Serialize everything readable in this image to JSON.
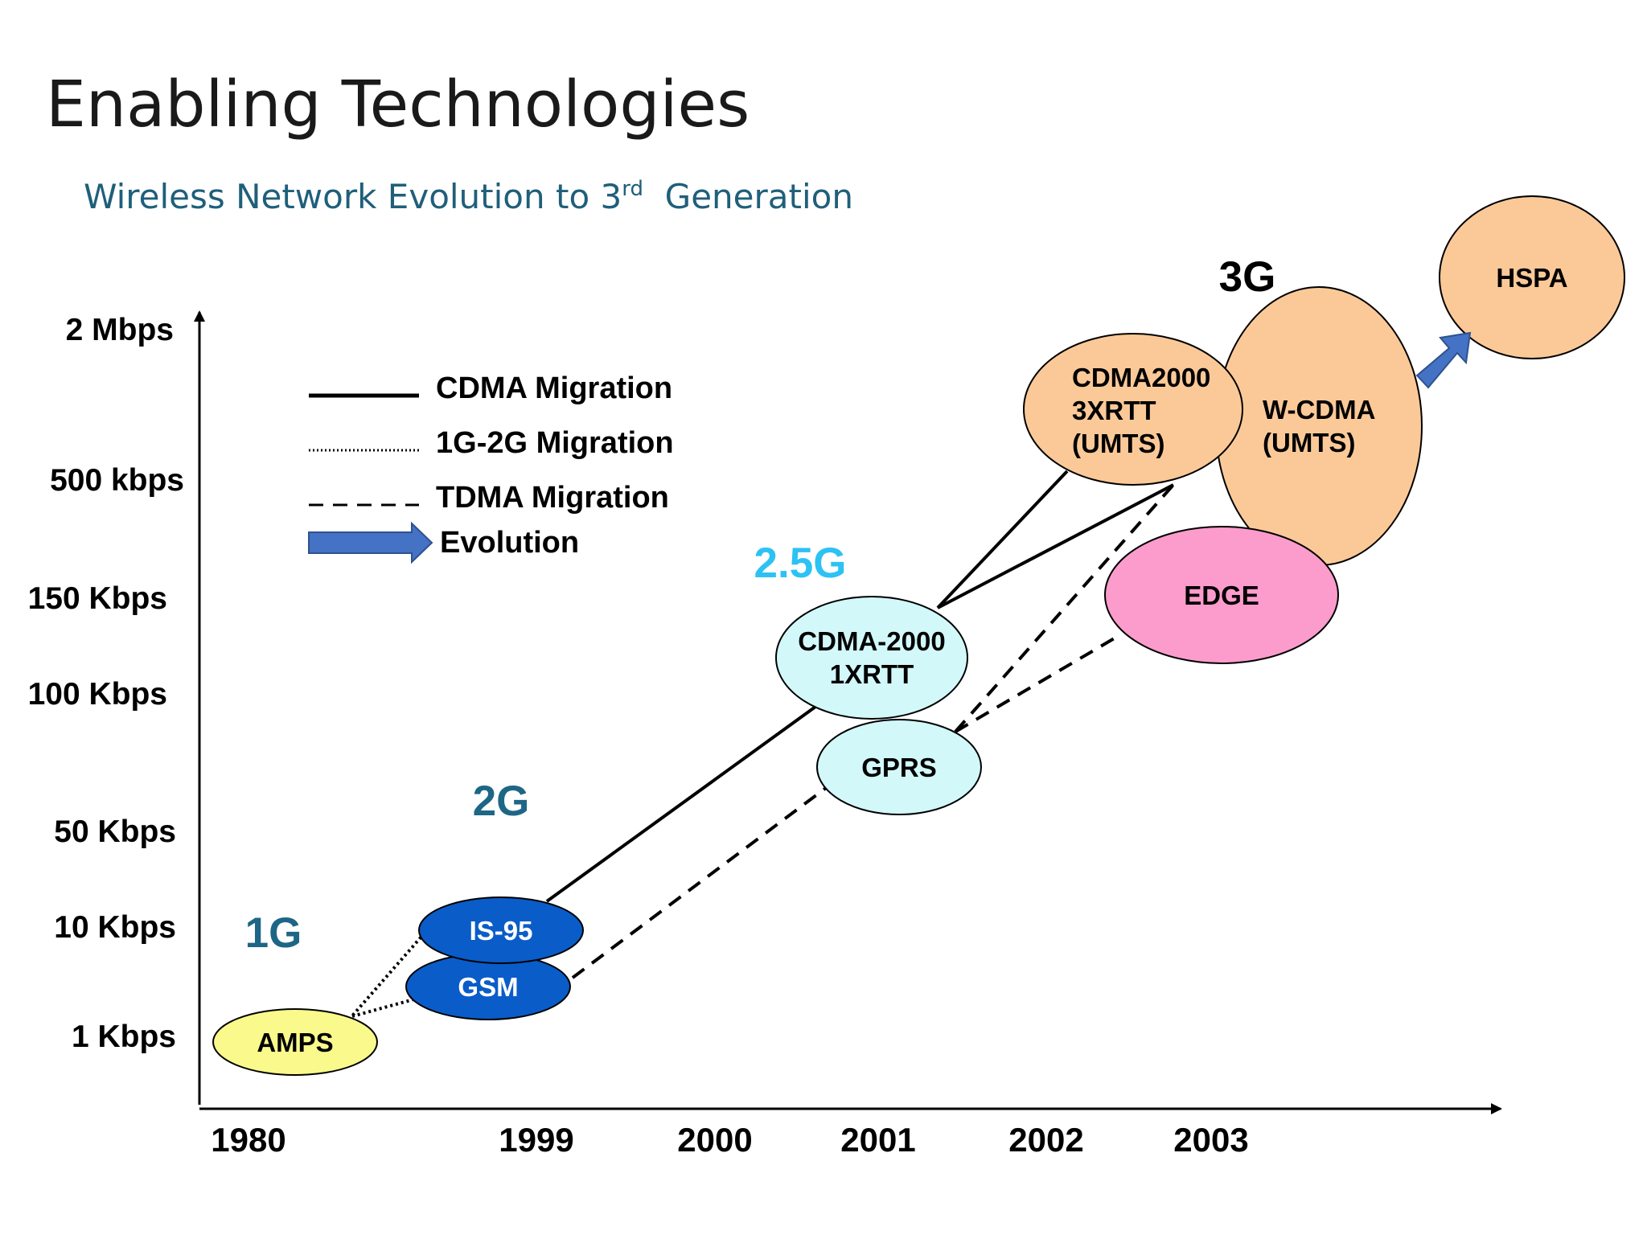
{
  "title": "Enabling Technologies",
  "subtitle": {
    "text": "Wireless Network Evolution to 3",
    "sup": "rd",
    "suffix": "  Generation"
  },
  "y_axis": [
    "2 Mbps",
    "500 kbps",
    "150 Kbps",
    "100 Kbps",
    "50 Kbps",
    "10 Kbps",
    "1 Kbps"
  ],
  "x_axis": [
    "1980",
    "1999",
    "2000",
    "2001",
    "2002",
    "2003"
  ],
  "legend": {
    "cdma": "CDMA Migration",
    "g12": "1G-2G Migration",
    "tdma": "TDMA Migration",
    "evolution": "Evolution"
  },
  "generations": {
    "g1": "1G",
    "g2": "2G",
    "g25": "2.5G",
    "g3": "3G"
  },
  "nodes": {
    "amps": "AMPS",
    "is95": "IS-95",
    "gsm": "GSM",
    "cdma1x": [
      "CDMA-2000",
      "1XRTT"
    ],
    "gprs": "GPRS",
    "edge": "EDGE",
    "cdma3x": [
      "CDMA2000",
      "3XRTT",
      "(UMTS)"
    ],
    "wcdma": [
      "W-CDMA",
      "(UMTS)"
    ],
    "hspa": "HSPA"
  },
  "colors": {
    "amps": "#fafa8c",
    "gsm_is95": "#0a5cc8",
    "cdma1x_gprs": "#d2f8fa",
    "edge": "#fb9ccc",
    "orange3g": "#fbc998",
    "g1_g2_text": "#1e6685",
    "g25_text": "#2cc2f4",
    "arrow": "#4472c4"
  }
}
